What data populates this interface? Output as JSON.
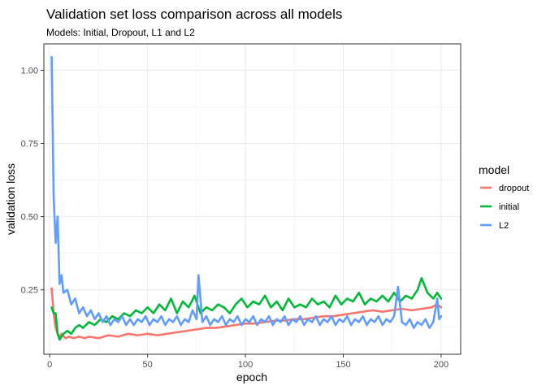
{
  "chart_data": {
    "type": "line",
    "title": "Validation set loss comparison across all models",
    "subtitle": "Models: Initial, Dropout, L1 and L2",
    "xlabel": "epoch",
    "ylabel": "validation loss",
    "xlim": [
      -3,
      210
    ],
    "ylim": [
      0.03,
      1.09
    ],
    "x_ticks": [
      0,
      50,
      100,
      150,
      200
    ],
    "y_ticks": [
      0.25,
      0.5,
      0.75,
      1.0
    ],
    "x_tick_labels": [
      "0",
      "50",
      "100",
      "150",
      "200"
    ],
    "y_tick_labels": [
      "0.25",
      "0.50",
      "0.75",
      "1.00"
    ],
    "grid": true,
    "legend": {
      "title": "model",
      "position": "right"
    },
    "series": [
      {
        "name": "dropout",
        "color": "#F8766D",
        "points": [
          [
            1,
            0.255
          ],
          [
            2,
            0.17
          ],
          [
            3,
            0.12
          ],
          [
            4,
            0.1
          ],
          [
            5,
            0.09
          ],
          [
            6,
            0.1
          ],
          [
            8,
            0.085
          ],
          [
            10,
            0.09
          ],
          [
            12,
            0.085
          ],
          [
            15,
            0.09
          ],
          [
            18,
            0.085
          ],
          [
            20,
            0.09
          ],
          [
            25,
            0.085
          ],
          [
            30,
            0.095
          ],
          [
            35,
            0.09
          ],
          [
            40,
            0.1
          ],
          [
            45,
            0.095
          ],
          [
            50,
            0.1
          ],
          [
            55,
            0.095
          ],
          [
            60,
            0.1
          ],
          [
            65,
            0.105
          ],
          [
            70,
            0.11
          ],
          [
            75,
            0.115
          ],
          [
            80,
            0.12
          ],
          [
            85,
            0.12
          ],
          [
            90,
            0.125
          ],
          [
            95,
            0.13
          ],
          [
            100,
            0.135
          ],
          [
            105,
            0.135
          ],
          [
            110,
            0.14
          ],
          [
            115,
            0.145
          ],
          [
            120,
            0.145
          ],
          [
            125,
            0.15
          ],
          [
            130,
            0.15
          ],
          [
            135,
            0.155
          ],
          [
            140,
            0.16
          ],
          [
            145,
            0.16
          ],
          [
            150,
            0.165
          ],
          [
            155,
            0.17
          ],
          [
            160,
            0.175
          ],
          [
            165,
            0.18
          ],
          [
            170,
            0.175
          ],
          [
            175,
            0.18
          ],
          [
            180,
            0.185
          ],
          [
            185,
            0.18
          ],
          [
            190,
            0.185
          ],
          [
            195,
            0.19
          ],
          [
            198,
            0.2
          ],
          [
            200,
            0.19
          ]
        ]
      },
      {
        "name": "initial",
        "color": "#00BA38",
        "points": [
          [
            1,
            0.19
          ],
          [
            2,
            0.17
          ],
          [
            3,
            0.17
          ],
          [
            4,
            0.1
          ],
          [
            5,
            0.08
          ],
          [
            7,
            0.1
          ],
          [
            9,
            0.11
          ],
          [
            11,
            0.1
          ],
          [
            13,
            0.12
          ],
          [
            15,
            0.13
          ],
          [
            17,
            0.12
          ],
          [
            20,
            0.14
          ],
          [
            23,
            0.13
          ],
          [
            26,
            0.15
          ],
          [
            29,
            0.14
          ],
          [
            32,
            0.16
          ],
          [
            35,
            0.15
          ],
          [
            38,
            0.17
          ],
          [
            41,
            0.16
          ],
          [
            44,
            0.18
          ],
          [
            47,
            0.17
          ],
          [
            50,
            0.19
          ],
          [
            53,
            0.17
          ],
          [
            56,
            0.2
          ],
          [
            59,
            0.18
          ],
          [
            62,
            0.22
          ],
          [
            65,
            0.17
          ],
          [
            68,
            0.21
          ],
          [
            71,
            0.19
          ],
          [
            74,
            0.23
          ],
          [
            77,
            0.17
          ],
          [
            80,
            0.19
          ],
          [
            83,
            0.18
          ],
          [
            86,
            0.2
          ],
          [
            89,
            0.19
          ],
          [
            92,
            0.17
          ],
          [
            95,
            0.2
          ],
          [
            98,
            0.22
          ],
          [
            101,
            0.19
          ],
          [
            104,
            0.21
          ],
          [
            107,
            0.2
          ],
          [
            110,
            0.23
          ],
          [
            113,
            0.19
          ],
          [
            116,
            0.21
          ],
          [
            119,
            0.18
          ],
          [
            122,
            0.22
          ],
          [
            125,
            0.19
          ],
          [
            128,
            0.2
          ],
          [
            131,
            0.19
          ],
          [
            134,
            0.22
          ],
          [
            137,
            0.2
          ],
          [
            140,
            0.21
          ],
          [
            143,
            0.19
          ],
          [
            146,
            0.23
          ],
          [
            149,
            0.2
          ],
          [
            152,
            0.22
          ],
          [
            155,
            0.21
          ],
          [
            158,
            0.24
          ],
          [
            161,
            0.2
          ],
          [
            164,
            0.22
          ],
          [
            167,
            0.21
          ],
          [
            170,
            0.23
          ],
          [
            173,
            0.21
          ],
          [
            176,
            0.24
          ],
          [
            179,
            0.21
          ],
          [
            182,
            0.23
          ],
          [
            185,
            0.22
          ],
          [
            188,
            0.25
          ],
          [
            190,
            0.29
          ],
          [
            193,
            0.24
          ],
          [
            196,
            0.22
          ],
          [
            198,
            0.24
          ],
          [
            200,
            0.22
          ]
        ]
      },
      {
        "name": "L2",
        "color": "#619CFF",
        "points": [
          [
            1,
            1.045
          ],
          [
            2,
            0.57
          ],
          [
            3,
            0.41
          ],
          [
            4,
            0.5
          ],
          [
            5,
            0.27
          ],
          [
            6,
            0.3
          ],
          [
            7,
            0.24
          ],
          [
            9,
            0.25
          ],
          [
            11,
            0.2
          ],
          [
            13,
            0.22
          ],
          [
            15,
            0.17
          ],
          [
            17,
            0.19
          ],
          [
            19,
            0.16
          ],
          [
            21,
            0.18
          ],
          [
            23,
            0.15
          ],
          [
            25,
            0.17
          ],
          [
            27,
            0.14
          ],
          [
            29,
            0.16
          ],
          [
            31,
            0.13
          ],
          [
            33,
            0.15
          ],
          [
            35,
            0.14
          ],
          [
            37,
            0.16
          ],
          [
            39,
            0.13
          ],
          [
            41,
            0.15
          ],
          [
            43,
            0.13
          ],
          [
            45,
            0.15
          ],
          [
            47,
            0.14
          ],
          [
            49,
            0.16
          ],
          [
            51,
            0.13
          ],
          [
            53,
            0.15
          ],
          [
            55,
            0.14
          ],
          [
            57,
            0.16
          ],
          [
            59,
            0.13
          ],
          [
            61,
            0.15
          ],
          [
            63,
            0.14
          ],
          [
            65,
            0.16
          ],
          [
            67,
            0.13
          ],
          [
            69,
            0.15
          ],
          [
            71,
            0.14
          ],
          [
            73,
            0.18
          ],
          [
            75,
            0.15
          ],
          [
            76,
            0.3
          ],
          [
            78,
            0.14
          ],
          [
            80,
            0.16
          ],
          [
            82,
            0.13
          ],
          [
            84,
            0.15
          ],
          [
            86,
            0.14
          ],
          [
            88,
            0.16
          ],
          [
            90,
            0.13
          ],
          [
            92,
            0.15
          ],
          [
            94,
            0.14
          ],
          [
            96,
            0.16
          ],
          [
            98,
            0.13
          ],
          [
            100,
            0.15
          ],
          [
            102,
            0.14
          ],
          [
            104,
            0.16
          ],
          [
            106,
            0.13
          ],
          [
            108,
            0.15
          ],
          [
            110,
            0.14
          ],
          [
            112,
            0.16
          ],
          [
            114,
            0.13
          ],
          [
            116,
            0.15
          ],
          [
            118,
            0.14
          ],
          [
            120,
            0.16
          ],
          [
            122,
            0.13
          ],
          [
            124,
            0.15
          ],
          [
            126,
            0.14
          ],
          [
            128,
            0.16
          ],
          [
            130,
            0.13
          ],
          [
            132,
            0.15
          ],
          [
            134,
            0.14
          ],
          [
            136,
            0.16
          ],
          [
            138,
            0.13
          ],
          [
            140,
            0.15
          ],
          [
            142,
            0.14
          ],
          [
            144,
            0.16
          ],
          [
            146,
            0.13
          ],
          [
            148,
            0.15
          ],
          [
            150,
            0.14
          ],
          [
            152,
            0.16
          ],
          [
            154,
            0.13
          ],
          [
            156,
            0.15
          ],
          [
            158,
            0.14
          ],
          [
            160,
            0.16
          ],
          [
            162,
            0.13
          ],
          [
            164,
            0.15
          ],
          [
            166,
            0.14
          ],
          [
            168,
            0.16
          ],
          [
            170,
            0.13
          ],
          [
            172,
            0.15
          ],
          [
            174,
            0.14
          ],
          [
            176,
            0.16
          ],
          [
            178,
            0.26
          ],
          [
            180,
            0.14
          ],
          [
            182,
            0.13
          ],
          [
            184,
            0.15
          ],
          [
            186,
            0.12
          ],
          [
            188,
            0.14
          ],
          [
            190,
            0.13
          ],
          [
            192,
            0.15
          ],
          [
            194,
            0.12
          ],
          [
            196,
            0.14
          ],
          [
            198,
            0.22
          ],
          [
            199,
            0.15
          ],
          [
            200,
            0.16
          ]
        ]
      }
    ]
  }
}
